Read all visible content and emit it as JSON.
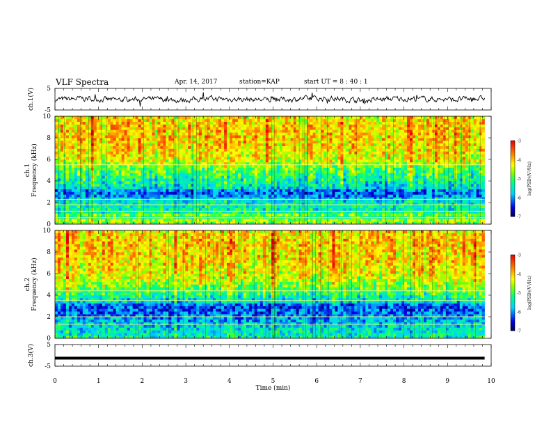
{
  "header": {
    "title": "VLF Spectra",
    "date": "Apr. 14, 2017",
    "station": "station=KAP",
    "start": "start UT =  8 : 40 : 1"
  },
  "chart_data": [
    {
      "type": "line",
      "ylabel": "ch.1(V)",
      "ylim": [
        -5,
        5
      ],
      "yticks": [
        5,
        -5
      ],
      "xlim": [
        0,
        10
      ],
      "x_end": 9.85,
      "trend": [
        -0.2,
        0.3,
        -0.4,
        0.1,
        -0.5,
        0.2,
        0.0,
        -0.3,
        0.1,
        0.4,
        -0.6,
        0.2,
        0.1,
        -0.2,
        0.3
      ],
      "noise": 1.0
    },
    {
      "type": "heatmap",
      "ylabel": "ch.1\nFrequency (kHz)",
      "ylim": [
        0,
        10
      ],
      "yticks": [
        "0",
        "2",
        "4",
        "6",
        "8",
        "10"
      ],
      "xlim": [
        0,
        10
      ],
      "x_end": 9.85,
      "colorbar": {
        "label": "log(PSD)(V²/Hz)",
        "range": [
          -7,
          -3
        ],
        "ticks": [
          "-3",
          "-4",
          "-5",
          "-6",
          "-7"
        ]
      },
      "levels": [
        [
          0.0,
          -5.0
        ],
        [
          0.3,
          -4.5
        ],
        [
          0.6,
          -5.2
        ],
        [
          0.9,
          -4.8
        ],
        [
          1.2,
          -5.5
        ],
        [
          1.6,
          -5.4
        ],
        [
          2.2,
          -5.6
        ],
        [
          2.6,
          -6.0
        ],
        [
          3.0,
          -6.3
        ],
        [
          3.4,
          -5.6
        ],
        [
          4.0,
          -5.4
        ],
        [
          5.0,
          -5.0
        ],
        [
          5.5,
          -4.7
        ],
        [
          6.0,
          -4.4
        ],
        [
          7.0,
          -4.2
        ],
        [
          8.0,
          -4.1
        ],
        [
          9.0,
          -4.1
        ],
        [
          10.0,
          -4.3
        ]
      ],
      "lines_khz": [
        0.6,
        1.2,
        1.8,
        2.3,
        5.5
      ]
    },
    {
      "type": "heatmap",
      "ylabel": "ch.2\nFrequency (kHz)",
      "ylim": [
        0,
        10
      ],
      "yticks": [
        "0",
        "2",
        "4",
        "6",
        "8",
        "10"
      ],
      "xlim": [
        0,
        10
      ],
      "x_end": 9.85,
      "colorbar": {
        "label": "log(PSD)(V²/Hz)",
        "range": [
          -7,
          -3
        ],
        "ticks": [
          "-3",
          "-4",
          "-5",
          "-6",
          "-7"
        ]
      },
      "levels": [
        [
          0.0,
          -5.3
        ],
        [
          0.5,
          -5.5
        ],
        [
          1.0,
          -5.6
        ],
        [
          1.5,
          -5.8
        ],
        [
          2.0,
          -6.0
        ],
        [
          2.5,
          -6.2
        ],
        [
          3.0,
          -6.3
        ],
        [
          3.4,
          -5.6
        ],
        [
          4.0,
          -5.2
        ],
        [
          5.0,
          -4.6
        ],
        [
          6.0,
          -4.3
        ],
        [
          7.0,
          -4.1
        ],
        [
          8.0,
          -4.1
        ],
        [
          9.0,
          -4.0
        ],
        [
          10.0,
          -4.2
        ]
      ],
      "lines_khz": [
        1.3,
        2.0,
        3.5,
        4.4
      ]
    },
    {
      "type": "line",
      "ylabel": "ch.3(V)",
      "ylim": [
        -5,
        5
      ],
      "yticks": [
        5,
        -5
      ],
      "xlim": [
        0,
        10
      ],
      "x_end": 9.85,
      "constant": -1.3,
      "xlabel": "Time (min)",
      "xticks": [
        "0",
        "1",
        "2",
        "3",
        "4",
        "5",
        "6",
        "7",
        "8",
        "9",
        "10"
      ]
    }
  ]
}
